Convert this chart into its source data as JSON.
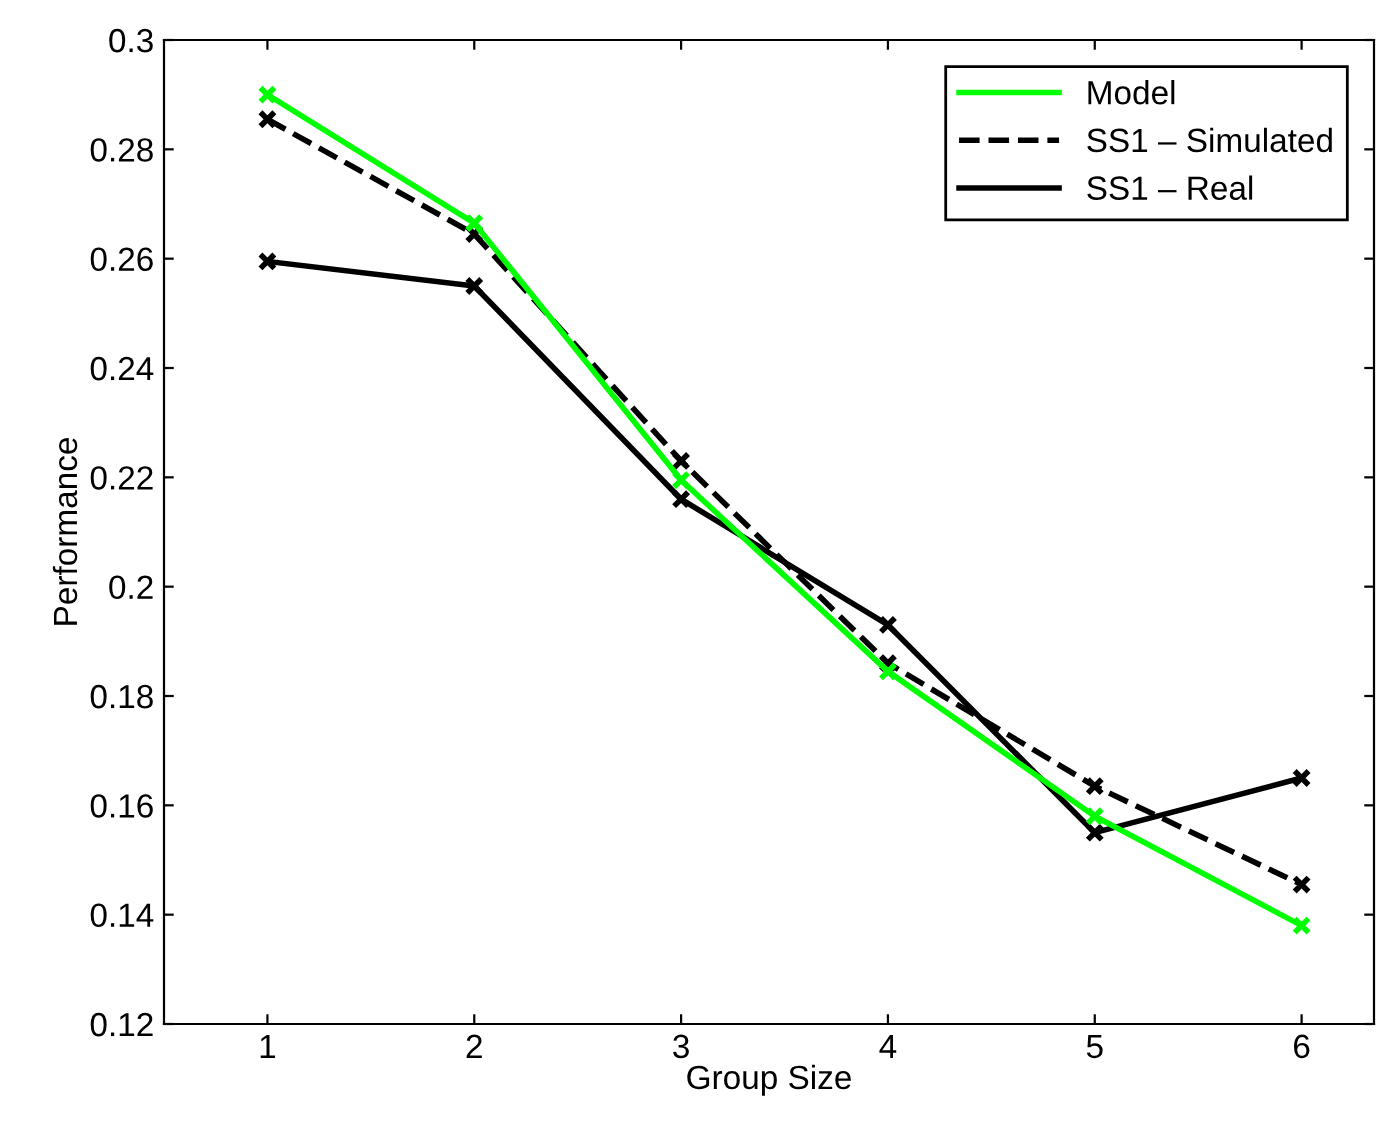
{
  "chart_data": {
    "type": "line",
    "xlabel": "Group Size",
    "ylabel": "Performance",
    "x": [
      1,
      2,
      3,
      4,
      5,
      6
    ],
    "series": [
      {
        "name": "Model",
        "color": "#00ff00",
        "line_style": "solid",
        "values": [
          0.29,
          0.2665,
          0.2195,
          0.1845,
          0.158,
          0.138
        ]
      },
      {
        "name": "SS1 – Simulated",
        "color": "#000000",
        "line_style": "dashed",
        "values": [
          0.2855,
          0.2645,
          0.223,
          0.186,
          0.1635,
          0.1455
        ]
      },
      {
        "name": "SS1 – Real",
        "color": "#000000",
        "line_style": "solid",
        "values": [
          0.2595,
          0.255,
          0.216,
          0.193,
          0.155,
          0.165
        ]
      }
    ],
    "marker": "cross",
    "xlim": [
      0.5,
      6.35
    ],
    "xticks": [
      1,
      2,
      3,
      4,
      5,
      6
    ],
    "ylim": [
      0.12,
      0.3
    ],
    "yticks": [
      0.12,
      0.14,
      0.16,
      0.18,
      0.2,
      0.22,
      0.24,
      0.26,
      0.28,
      0.3
    ],
    "grid": false,
    "legend": "top right"
  }
}
